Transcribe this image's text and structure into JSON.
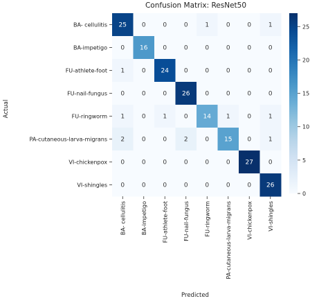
{
  "chart_data": {
    "type": "heatmap",
    "title": "Confusion Matrix: ResNet50",
    "xlabel": "Predicted",
    "ylabel": "Actual",
    "row_labels": [
      "BA- cellulitis",
      "BA-impetigo",
      "FU-athlete-foot",
      "FU-nail-fungus",
      "FU-ringworm",
      "PA-cutaneous-larva-migrans",
      "VI-chickenpox",
      "VI-shingles"
    ],
    "col_labels": [
      "BA- cellulitis",
      "BA-impetigo",
      "FU-athlete-foot",
      "FU-nail-fungus",
      "FU-ringworm",
      "PA-cutaneous-larva-migrans",
      "VI-chickenpox",
      "VI-shingles"
    ],
    "matrix": [
      [
        25,
        0,
        0,
        0,
        1,
        0,
        0,
        1
      ],
      [
        0,
        16,
        0,
        0,
        0,
        0,
        0,
        0
      ],
      [
        1,
        0,
        24,
        0,
        0,
        0,
        0,
        0
      ],
      [
        0,
        0,
        0,
        26,
        0,
        0,
        0,
        0
      ],
      [
        1,
        0,
        1,
        0,
        14,
        1,
        0,
        1
      ],
      [
        2,
        0,
        0,
        2,
        0,
        15,
        0,
        1
      ],
      [
        0,
        0,
        0,
        0,
        0,
        0,
        27,
        0
      ],
      [
        0,
        0,
        0,
        0,
        0,
        0,
        0,
        26
      ]
    ],
    "colormap": "Blues",
    "vmin": 0,
    "vmax": 27,
    "colorbar_ticks": [
      0,
      5,
      10,
      15,
      20,
      25
    ],
    "grid": false
  }
}
